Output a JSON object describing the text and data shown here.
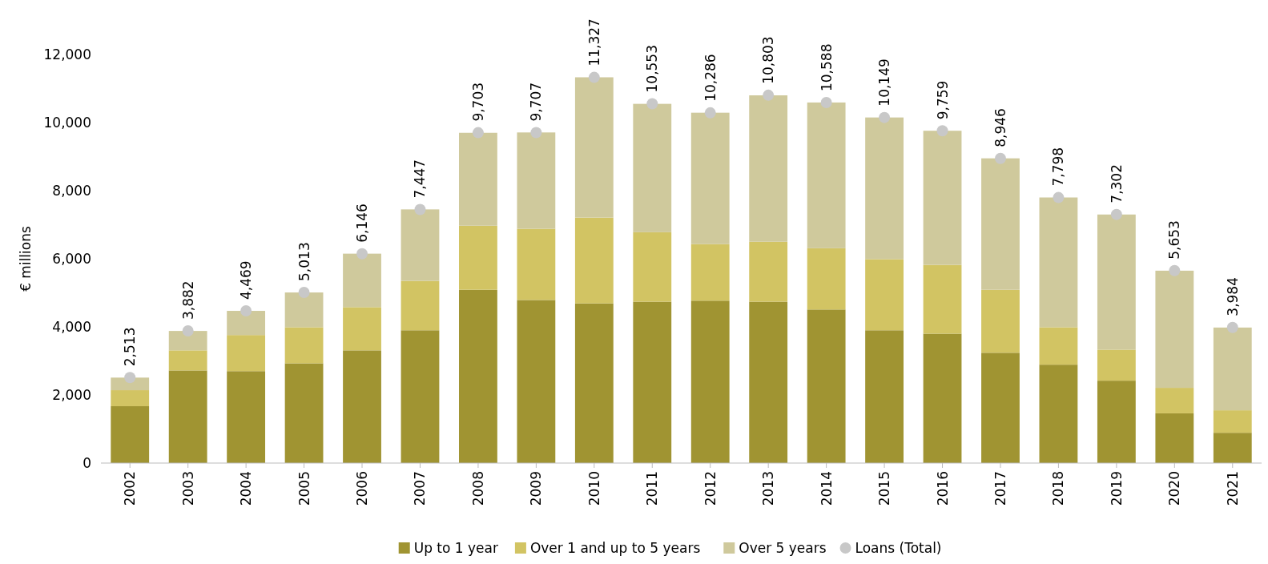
{
  "chart_data": {
    "type": "bar",
    "stacked": true,
    "ylabel": "€ millions",
    "legend": "bottom",
    "grid": false,
    "ylim": [
      0,
      12000
    ],
    "yticks": [
      {
        "value": 0,
        "label": "0"
      },
      {
        "value": 2000,
        "label": "2,000"
      },
      {
        "value": 4000,
        "label": "4,000"
      },
      {
        "value": 6000,
        "label": "6,000"
      },
      {
        "value": 8000,
        "label": "8,000"
      },
      {
        "value": 10000,
        "label": "10,000"
      },
      {
        "value": 12000,
        "label": "12,000"
      }
    ],
    "categories": [
      "2002",
      "2003",
      "2004",
      "2005",
      "2006",
      "2007",
      "2008",
      "2009",
      "2010",
      "2011",
      "2012",
      "2013",
      "2014",
      "2015",
      "2016",
      "2017",
      "2018",
      "2019",
      "2020",
      "2021"
    ],
    "series": [
      {
        "name": "Up to 1 year",
        "color": "#a09432",
        "values": [
          1670,
          2720,
          2700,
          2930,
          3310,
          3900,
          5090,
          4790,
          4690,
          4740,
          4770,
          4740,
          4510,
          3900,
          3800,
          3240,
          2890,
          2420,
          1460,
          890
        ]
      },
      {
        "name": "Over 1 and up to 5 years",
        "color": "#d2c463",
        "values": [
          470,
          590,
          1060,
          1060,
          1270,
          1450,
          1880,
          2090,
          2520,
          2040,
          1660,
          1760,
          1800,
          2090,
          2020,
          1850,
          1100,
          910,
          750,
          660
        ]
      },
      {
        "name": "Over 5 years",
        "color": "#cfc99c",
        "values": [
          370,
          570,
          710,
          1020,
          1570,
          2100,
          2730,
          2830,
          4120,
          3770,
          3860,
          4300,
          4280,
          4160,
          3940,
          3860,
          3810,
          3970,
          3440,
          2430
        ]
      },
      {
        "name": "Loans (Total)",
        "type": "scatter",
        "marker": "circle",
        "color": "#c8c8c8",
        "values": [
          2513,
          3882,
          4469,
          5013,
          6146,
          7447,
          9703,
          9707,
          11327,
          10553,
          10286,
          10803,
          10588,
          10149,
          9759,
          8946,
          7798,
          7302,
          5653,
          3984
        ],
        "value_labels": [
          "2,513",
          "3,882",
          "4,469",
          "5,013",
          "6,146",
          "7,447",
          "9,703",
          "9,707",
          "11,327",
          "10,553",
          "10,286",
          "10,803",
          "10,588",
          "10,149",
          "9,759",
          "8,946",
          "7,798",
          "7,302",
          "5,653",
          "3,984"
        ]
      }
    ]
  }
}
